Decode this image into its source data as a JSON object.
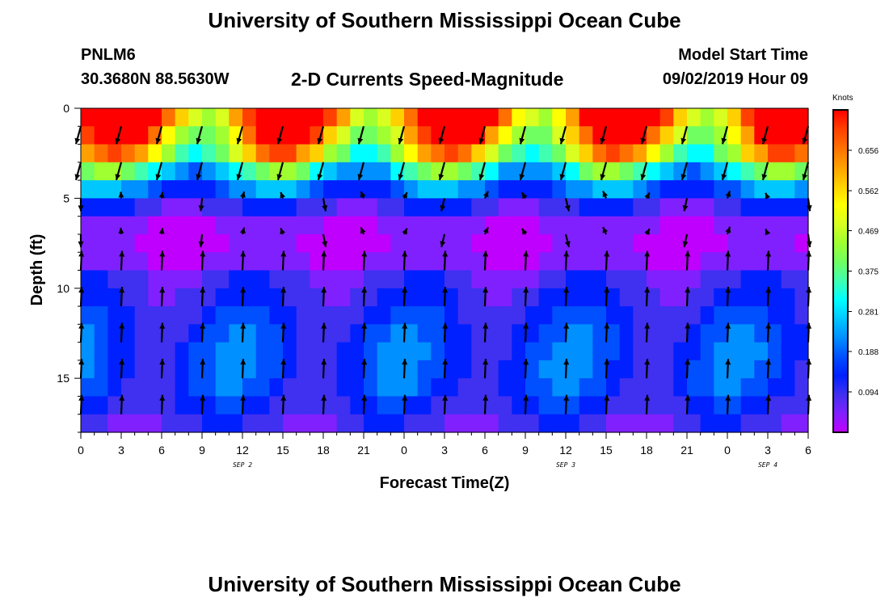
{
  "header": {
    "title_top": "University of Southern Mississippi Ocean Cube",
    "title_bottom": "University of Southern Mississippi Ocean Cube",
    "station_id": "PNLM6",
    "station_coords": "30.3680N 88.5630W",
    "chart_title": "2-D Currents Speed-Magnitude",
    "model_label": "Model Start Time",
    "model_time": "09/02/2019 Hour 09"
  },
  "colors": {
    "palette": [
      "#c000ff",
      "#8020ff",
      "#4030f0",
      "#0020ff",
      "#0050ff",
      "#0090ff",
      "#00c8ff",
      "#00ffff",
      "#40ffb0",
      "#70ff60",
      "#a0ff30",
      "#d8ff20",
      "#ffff00",
      "#ffd000",
      "#ffa000",
      "#ff7000",
      "#ff4000",
      "#ff0000"
    ],
    "arrow": "#000000"
  },
  "chart_data": {
    "type": "heatmap",
    "xlabel": "Forecast Time(Z)",
    "ylabel": "Depth (ft)",
    "x_range": [
      0,
      54
    ],
    "y_range": [
      0,
      18
    ],
    "x_ticks": [
      0,
      3,
      6,
      9,
      12,
      15,
      18,
      21,
      24,
      27,
      30,
      33,
      36,
      39,
      42,
      45,
      48,
      51,
      54
    ],
    "x_tick_labels": [
      "0",
      "3",
      "6",
      "9",
      "12",
      "15",
      "18",
      "21",
      "0",
      "3",
      "6",
      "9",
      "12",
      "15",
      "18",
      "21",
      "0",
      "3",
      "6"
    ],
    "y_ticks": [
      0,
      5,
      10,
      15
    ],
    "y_tick_labels": [
      "0",
      "5",
      "10",
      "15"
    ],
    "day_labels": [
      {
        "x": 12,
        "text": "SEP 2"
      },
      {
        "x": 36,
        "text": "SEP 3"
      },
      {
        "x": 51,
        "text": "SEP 4"
      }
    ],
    "colorbar": {
      "title": "Knots",
      "range": [
        0,
        0.75
      ],
      "ticks": [
        0.656,
        0.562,
        0.469,
        0.375,
        0.281,
        0.188,
        0.094
      ],
      "tick_labels": [
        "0.656",
        "0.562",
        "0.469",
        "0.375",
        "0.281",
        "0.188",
        "0.094"
      ]
    },
    "depth_bands": [
      0.5,
      1.5,
      2.5,
      3.5,
      4.5,
      5.5,
      6.5,
      7.5,
      8.5,
      9.5,
      10.5,
      11.5,
      12.5,
      13.5,
      14.5,
      15.5,
      16.5,
      17.5
    ],
    "speed_profile_knots": [
      0.69,
      0.6,
      0.5,
      0.32,
      0.2,
      0.11,
      0.05,
      0.04,
      0.05,
      0.1,
      0.12,
      0.14,
      0.16,
      0.17,
      0.17,
      0.16,
      0.13,
      0.1
    ],
    "vector_times": [
      0,
      3,
      6,
      9,
      12,
      15,
      18,
      21,
      24,
      27,
      30,
      33,
      36,
      39,
      42,
      45,
      48,
      51,
      54
    ],
    "vector_depths": [
      1,
      3,
      5,
      7,
      9,
      11,
      13,
      15,
      17
    ]
  }
}
